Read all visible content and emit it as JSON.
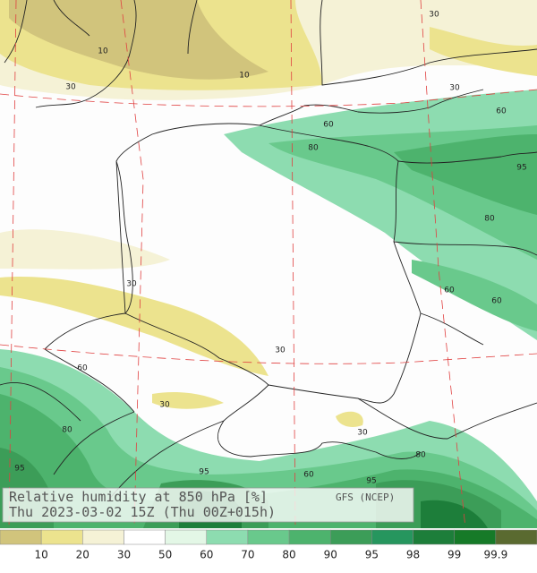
{
  "title": "Relative humidity at 850 hPa [%]",
  "subtitle": "Thu 2023-03-02 15Z (Thu 00Z+015h)",
  "source": "GFS (NCEP)",
  "colorbar": {
    "levels": [
      10,
      20,
      30,
      50,
      60,
      70,
      80,
      90,
      95,
      98,
      99,
      99.9
    ],
    "colors": [
      "#d1c47c",
      "#ece38e",
      "#f5f2d6",
      "#ffffff",
      "#e3f7e6",
      "#8ddcb0",
      "#69c98c",
      "#4db36d",
      "#3c9d58",
      "#26965e",
      "#1d7e3a",
      "#167a28",
      "#5a6a30"
    ]
  },
  "contour_labels": [
    10,
    10,
    30,
    30,
    30,
    60,
    80,
    60,
    95,
    80,
    60,
    60,
    30,
    30,
    60,
    30,
    30,
    80,
    80,
    95,
    95,
    60,
    95
  ]
}
